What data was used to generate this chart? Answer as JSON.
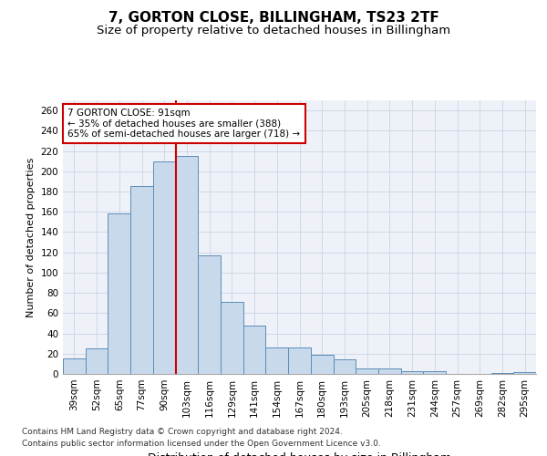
{
  "title": "7, GORTON CLOSE, BILLINGHAM, TS23 2TF",
  "subtitle": "Size of property relative to detached houses in Billingham",
  "xlabel": "Distribution of detached houses by size in Billingham",
  "ylabel": "Number of detached properties",
  "categories": [
    "39sqm",
    "52sqm",
    "65sqm",
    "77sqm",
    "90sqm",
    "103sqm",
    "116sqm",
    "129sqm",
    "141sqm",
    "154sqm",
    "167sqm",
    "180sqm",
    "193sqm",
    "205sqm",
    "218sqm",
    "231sqm",
    "244sqm",
    "257sqm",
    "269sqm",
    "282sqm",
    "295sqm"
  ],
  "values": [
    15,
    25,
    158,
    185,
    210,
    215,
    117,
    71,
    48,
    26,
    26,
    19,
    14,
    5,
    5,
    3,
    3,
    0,
    0,
    1,
    2
  ],
  "bar_color": "#c9d9ec",
  "bar_edge_color": "#5b8db8",
  "highlight_line_color": "#cc0000",
  "annotation_text": "7 GORTON CLOSE: 91sqm\n← 35% of detached houses are smaller (388)\n65% of semi-detached houses are larger (718) →",
  "annotation_box_color": "#cc0000",
  "ylim": [
    0,
    270
  ],
  "yticks": [
    0,
    20,
    40,
    60,
    80,
    100,
    120,
    140,
    160,
    180,
    200,
    220,
    240,
    260
  ],
  "grid_color": "#d0d8e8",
  "background_color": "#eef2f8",
  "footer_line1": "Contains HM Land Registry data © Crown copyright and database right 2024.",
  "footer_line2": "Contains public sector information licensed under the Open Government Licence v3.0.",
  "title_fontsize": 11,
  "subtitle_fontsize": 9.5,
  "xlabel_fontsize": 9,
  "ylabel_fontsize": 8,
  "tick_fontsize": 7.5,
  "footer_fontsize": 6.5
}
